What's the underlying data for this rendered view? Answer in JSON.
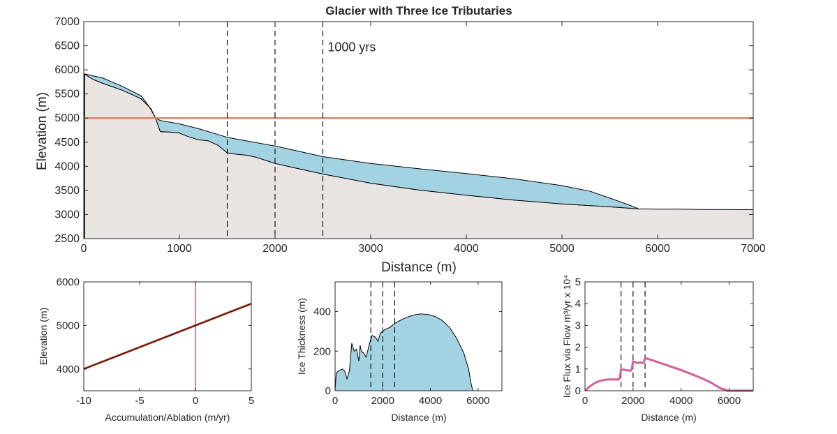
{
  "chart_data": [
    {
      "id": "main",
      "type": "area",
      "title": "Glacier with Three Ice Tributaries",
      "xlabel": "Distance (m)",
      "ylabel": "Elevation (m)",
      "xlim": [
        0,
        7000
      ],
      "ylim": [
        2500,
        7000
      ],
      "xticks": [
        "0",
        "1000",
        "2000",
        "3000",
        "4000",
        "5000",
        "6000",
        "7000"
      ],
      "yticks": [
        "2500",
        "3000",
        "3500",
        "4000",
        "4500",
        "5000",
        "5500",
        "6000",
        "6500",
        "7000"
      ],
      "annotation": "1000 yrs",
      "annotation_pos": [
        2550,
        6500
      ],
      "ela": 5000,
      "tributaries": [
        1500,
        2000,
        2500
      ],
      "bed": [
        [
          0,
          5920
        ],
        [
          100,
          5800
        ],
        [
          200,
          5720
        ],
        [
          400,
          5580
        ],
        [
          600,
          5400
        ],
        [
          700,
          5200
        ],
        [
          750,
          5000
        ],
        [
          800,
          4720
        ],
        [
          900,
          4710
        ],
        [
          1000,
          4690
        ],
        [
          1100,
          4610
        ],
        [
          1200,
          4550
        ],
        [
          1300,
          4530
        ],
        [
          1400,
          4440
        ],
        [
          1500,
          4280
        ],
        [
          1600,
          4250
        ],
        [
          1700,
          4230
        ],
        [
          1800,
          4190
        ],
        [
          2000,
          4060
        ],
        [
          2200,
          3970
        ],
        [
          2500,
          3840
        ],
        [
          3000,
          3650
        ],
        [
          3500,
          3510
        ],
        [
          4000,
          3400
        ],
        [
          4500,
          3300
        ],
        [
          5000,
          3220
        ],
        [
          5500,
          3160
        ],
        [
          5800,
          3120
        ],
        [
          6000,
          3110
        ],
        [
          6200,
          3110
        ],
        [
          6500,
          3105
        ],
        [
          7000,
          3100
        ]
      ],
      "surface": [
        [
          0,
          5920
        ],
        [
          200,
          5830
        ],
        [
          400,
          5660
        ],
        [
          600,
          5460
        ],
        [
          690,
          5220
        ],
        [
          750,
          5000
        ],
        [
          800,
          4950
        ],
        [
          1000,
          4880
        ],
        [
          1200,
          4780
        ],
        [
          1400,
          4660
        ],
        [
          1500,
          4600
        ],
        [
          2000,
          4420
        ],
        [
          2500,
          4200
        ],
        [
          3000,
          4060
        ],
        [
          3500,
          3950
        ],
        [
          4000,
          3850
        ],
        [
          4500,
          3740
        ],
        [
          5000,
          3600
        ],
        [
          5300,
          3480
        ],
        [
          5500,
          3340
        ],
        [
          5700,
          3200
        ],
        [
          5800,
          3120
        ]
      ],
      "colors": {
        "bed": "#e8e4e1",
        "ice": "#a3d3e3",
        "ela": "#d9846b",
        "outline": "#000000"
      }
    },
    {
      "id": "mass-balance",
      "type": "line",
      "xlabel": "Accumulation/Ablation (m/yr)",
      "ylabel": "Elevation (m)",
      "xlim": [
        -10,
        5
      ],
      "ylim": [
        3500,
        6000
      ],
      "xticks": [
        "-10",
        "-5",
        "0",
        "5"
      ],
      "yticks": [
        "4000",
        "5000",
        "6000"
      ],
      "balance_line": [
        [
          -10,
          4000
        ],
        [
          5,
          5500
        ]
      ],
      "zero_line_x": 0,
      "colors": {
        "balance": "#b5442e",
        "zero": "#d9546b"
      }
    },
    {
      "id": "ice-thickness",
      "type": "area",
      "xlabel": "Distance (m)",
      "ylabel": "Ice Thickness (m)",
      "xlim": [
        0,
        7000
      ],
      "ylim": [
        0,
        550
      ],
      "xticks": [
        "0",
        "2000",
        "4000",
        "6000"
      ],
      "yticks": [
        "0",
        "200",
        "400"
      ],
      "tributaries": [
        1500,
        2000,
        2500
      ],
      "thickness": [
        [
          0,
          0
        ],
        [
          50,
          90
        ],
        [
          150,
          100
        ],
        [
          300,
          110
        ],
        [
          400,
          100
        ],
        [
          500,
          60
        ],
        [
          600,
          100
        ],
        [
          700,
          240
        ],
        [
          800,
          200
        ],
        [
          900,
          210
        ],
        [
          1000,
          150
        ],
        [
          1050,
          230
        ],
        [
          1100,
          200
        ],
        [
          1200,
          190
        ],
        [
          1300,
          170
        ],
        [
          1450,
          240
        ],
        [
          1550,
          280
        ],
        [
          1700,
          270
        ],
        [
          1800,
          250
        ],
        [
          1900,
          290
        ],
        [
          2000,
          300
        ],
        [
          2100,
          310
        ],
        [
          2300,
          320
        ],
        [
          2500,
          340
        ],
        [
          2800,
          360
        ],
        [
          3100,
          375
        ],
        [
          3400,
          385
        ],
        [
          3600,
          388
        ],
        [
          3900,
          385
        ],
        [
          4200,
          375
        ],
        [
          4500,
          355
        ],
        [
          4800,
          320
        ],
        [
          5100,
          265
        ],
        [
          5400,
          190
        ],
        [
          5600,
          110
        ],
        [
          5700,
          40
        ],
        [
          5780,
          0
        ],
        [
          7000,
          0
        ]
      ],
      "colors": {
        "ice": "#a3d3e3"
      }
    },
    {
      "id": "ice-flux",
      "type": "line",
      "xlabel": "Distance (m)",
      "ylabel": "Ice Flux via Flow m³/yr x 10⁴",
      "xlim": [
        0,
        7000
      ],
      "ylim": [
        0,
        5
      ],
      "xticks": [
        "0",
        "2000",
        "4000",
        "6000"
      ],
      "yticks": [
        "0",
        "1",
        "2",
        "3",
        "4",
        "5"
      ],
      "tributaries": [
        1500,
        2000,
        2500
      ],
      "flux": [
        [
          0,
          0
        ],
        [
          100,
          0.1
        ],
        [
          200,
          0.2
        ],
        [
          400,
          0.35
        ],
        [
          600,
          0.45
        ],
        [
          800,
          0.5
        ],
        [
          1000,
          0.52
        ],
        [
          1200,
          0.52
        ],
        [
          1400,
          0.52
        ],
        [
          1450,
          0.6
        ],
        [
          1500,
          0.97
        ],
        [
          1600,
          0.97
        ],
        [
          1700,
          0.95
        ],
        [
          1800,
          0.93
        ],
        [
          1900,
          0.92
        ],
        [
          1950,
          1.0
        ],
        [
          2000,
          1.35
        ],
        [
          2100,
          1.3
        ],
        [
          2200,
          1.28
        ],
        [
          2300,
          1.3
        ],
        [
          2400,
          1.27
        ],
        [
          2450,
          1.3
        ],
        [
          2500,
          1.5
        ],
        [
          2800,
          1.4
        ],
        [
          3200,
          1.25
        ],
        [
          3600,
          1.1
        ],
        [
          4000,
          0.95
        ],
        [
          4400,
          0.78
        ],
        [
          4800,
          0.6
        ],
        [
          5200,
          0.4
        ],
        [
          5500,
          0.2
        ],
        [
          5700,
          0.08
        ],
        [
          5800,
          0.07
        ],
        [
          5900,
          0.0
        ],
        [
          7000,
          0.0
        ]
      ],
      "colors": {
        "flux": "#d0679e"
      }
    }
  ]
}
